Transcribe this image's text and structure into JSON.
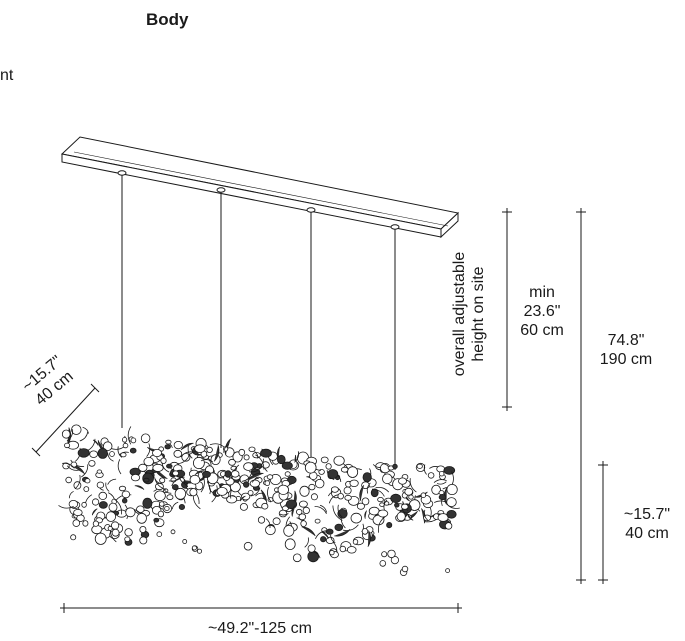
{
  "header": {
    "title": "Body",
    "left_fragment": "nt"
  },
  "dimensions": {
    "depth_in": "~15.7\"",
    "depth_cm": "40 cm",
    "adjustable_line1": "overall adjustable",
    "adjustable_line2": "height on site",
    "min_label": "min",
    "min_in": "23.6\"",
    "min_cm": "60 cm",
    "overall_in": "74.8\"",
    "overall_cm": "190 cm",
    "body_height_in": "~15.7\"",
    "body_height_cm": "40 cm",
    "length": "~49.2\"-125 cm"
  },
  "colors": {
    "line": "#1a1a1a",
    "canopy_fill": "#ffffff"
  }
}
